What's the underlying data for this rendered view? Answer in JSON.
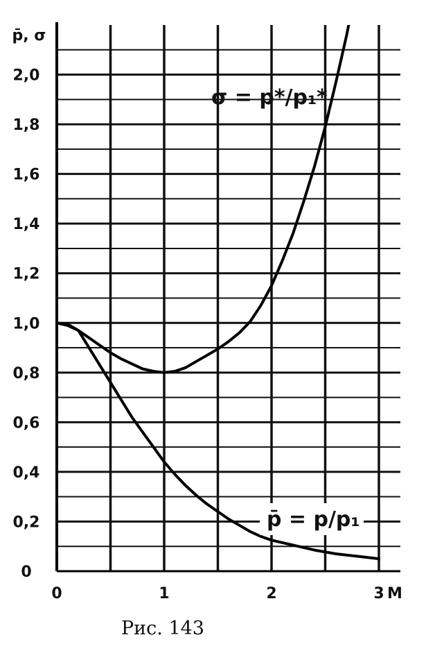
{
  "caption": "Рис. 143",
  "chart_data": {
    "type": "line",
    "xlabel": "M",
    "ylabel": "p̄, σ",
    "xlim": [
      0,
      3.2
    ],
    "ylim": [
      0,
      2.2
    ],
    "x_ticks": [
      "0",
      "1",
      "2",
      "3"
    ],
    "x_tick_values": [
      0,
      1,
      2,
      3
    ],
    "y_ticks": [
      "0",
      "0,2",
      "0,4",
      "0,6",
      "0,8",
      "1,0",
      "1,2",
      "1,4",
      "1,6",
      "1,8",
      "2,0"
    ],
    "y_tick_values": [
      0,
      0.2,
      0.4,
      0.6,
      0.8,
      1.0,
      1.2,
      1.4,
      1.6,
      1.8,
      2.0
    ],
    "grid": true,
    "series": [
      {
        "name": "σ = p*/p₁*",
        "x": [
          0,
          0.1,
          0.2,
          0.3,
          0.4,
          0.5,
          0.6,
          0.7,
          0.8,
          0.9,
          1.0,
          1.1,
          1.2,
          1.3,
          1.4,
          1.5,
          1.6,
          1.7,
          1.8,
          1.9,
          2.0,
          2.1,
          2.2,
          2.3,
          2.4,
          2.5,
          2.6,
          2.7,
          2.75
        ],
        "y": [
          1.0,
          0.99,
          0.97,
          0.94,
          0.91,
          0.88,
          0.855,
          0.835,
          0.815,
          0.805,
          0.8,
          0.805,
          0.82,
          0.845,
          0.87,
          0.895,
          0.925,
          0.96,
          1.005,
          1.07,
          1.15,
          1.25,
          1.36,
          1.49,
          1.63,
          1.79,
          1.97,
          2.16,
          2.27
        ]
      },
      {
        "name": "p̄ = p/p₁",
        "x": [
          0,
          0.1,
          0.2,
          0.3,
          0.4,
          0.5,
          0.6,
          0.7,
          0.8,
          0.9,
          1.0,
          1.1,
          1.2,
          1.3,
          1.4,
          1.5,
          1.6,
          1.7,
          1.8,
          1.9,
          2.0,
          2.2,
          2.4,
          2.6,
          2.8,
          3.0
        ],
        "y": [
          1.0,
          0.995,
          0.97,
          0.9,
          0.83,
          0.76,
          0.69,
          0.62,
          0.56,
          0.5,
          0.44,
          0.39,
          0.345,
          0.305,
          0.27,
          0.24,
          0.21,
          0.185,
          0.16,
          0.14,
          0.125,
          0.105,
          0.085,
          0.07,
          0.06,
          0.05
        ]
      }
    ]
  }
}
